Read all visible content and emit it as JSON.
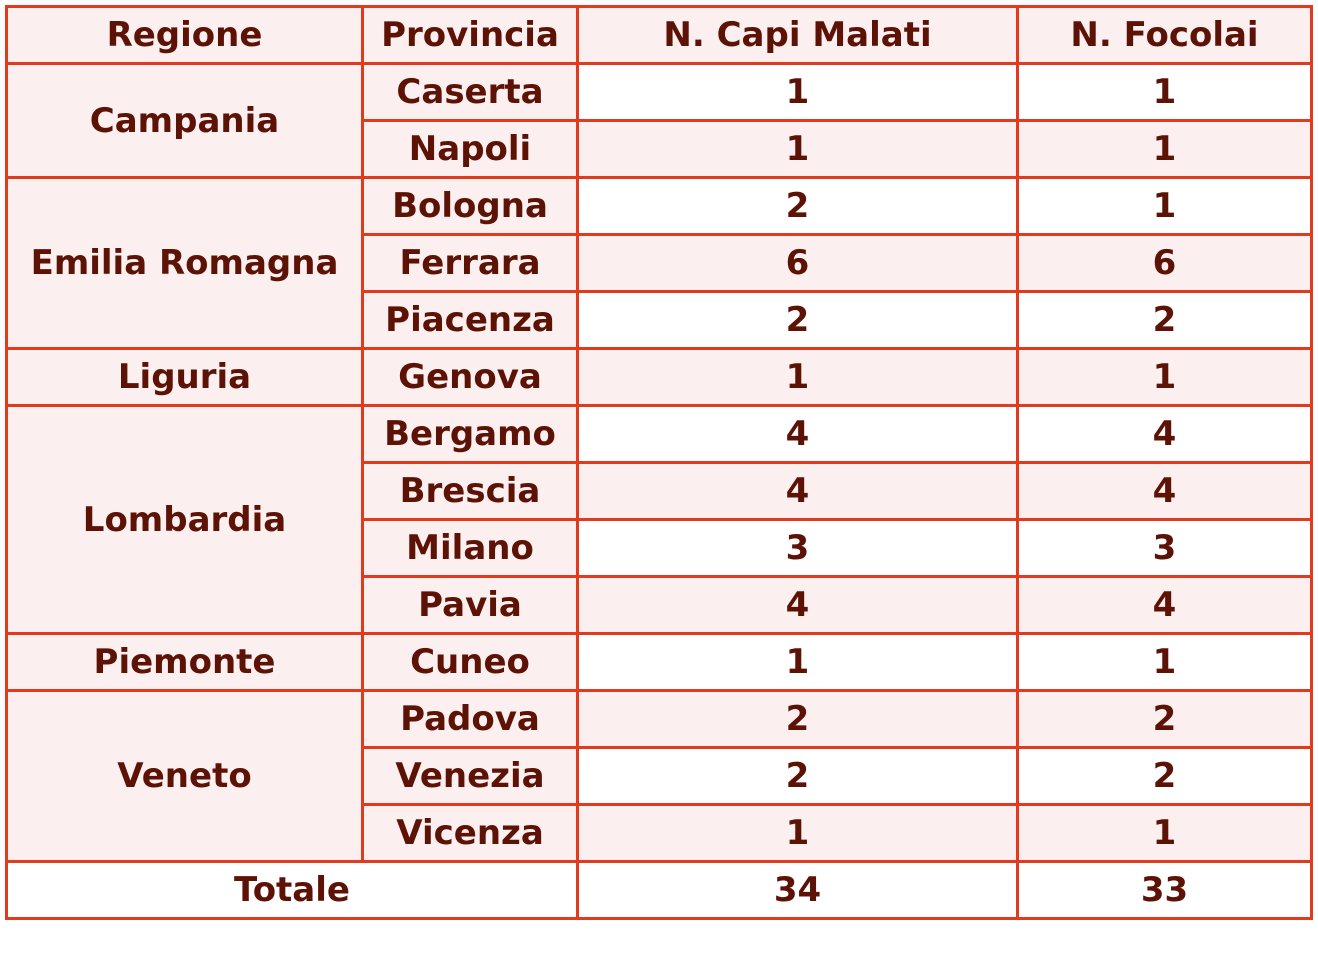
{
  "headers": [
    "Regione",
    "Provincia",
    "N. Capi Malati",
    "N. Focolai"
  ],
  "regions": [
    {
      "name": "Campania",
      "provinces": [
        {
          "name": "Caserta",
          "capi": "1",
          "focolai": "1"
        },
        {
          "name": "Napoli",
          "capi": "1",
          "focolai": "1"
        }
      ]
    },
    {
      "name": "Emilia Romagna",
      "provinces": [
        {
          "name": "Bologna",
          "capi": "2",
          "focolai": "1"
        },
        {
          "name": "Ferrara",
          "capi": "6",
          "focolai": "6"
        },
        {
          "name": "Piacenza",
          "capi": "2",
          "focolai": "2"
        }
      ]
    },
    {
      "name": "Liguria",
      "provinces": [
        {
          "name": "Genova",
          "capi": "1",
          "focolai": "1"
        }
      ]
    },
    {
      "name": "Lombardia",
      "provinces": [
        {
          "name": "Bergamo",
          "capi": "4",
          "focolai": "4"
        },
        {
          "name": "Brescia",
          "capi": "4",
          "focolai": "4"
        },
        {
          "name": "Milano",
          "capi": "3",
          "focolai": "3"
        },
        {
          "name": "Pavia",
          "capi": "4",
          "focolai": "4"
        }
      ]
    },
    {
      "name": "Piemonte",
      "provinces": [
        {
          "name": "Cuneo",
          "capi": "1",
          "focolai": "1"
        }
      ]
    },
    {
      "name": "Veneto",
      "provinces": [
        {
          "name": "Padova",
          "capi": "2",
          "focolai": "2"
        },
        {
          "name": "Venezia",
          "capi": "2",
          "focolai": "2"
        },
        {
          "name": "Vicenza",
          "capi": "1",
          "focolai": "1"
        }
      ]
    }
  ],
  "total": {
    "label": "Totale",
    "capi": "34",
    "focolai": "33"
  },
  "colors": {
    "border": "#e23a1c",
    "text": "#5c1204",
    "row_alt": "#fcefef"
  }
}
